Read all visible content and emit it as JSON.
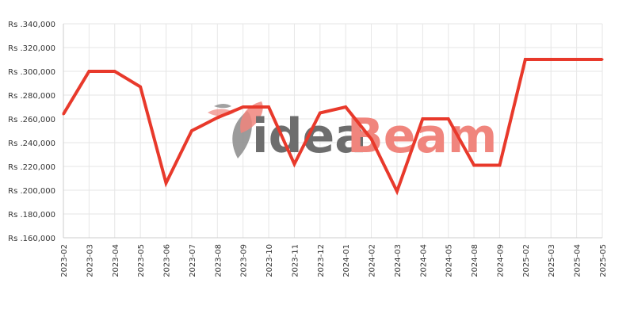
{
  "watermark": {
    "part1": "idea",
    "part2": "Beam"
  },
  "colors": {
    "line": "#e8392b",
    "grid": "#e6e6e6",
    "axis": "#cccccc",
    "text": "#333333"
  },
  "chart_data": {
    "type": "line",
    "title": "",
    "xlabel": "",
    "ylabel": "",
    "grid": true,
    "legend": "none",
    "ylim": [
      160000,
      340000
    ],
    "yticks": [
      160000,
      180000,
      200000,
      220000,
      240000,
      260000,
      280000,
      300000,
      320000,
      340000
    ],
    "ytick_labels": [
      "Rs .160,000",
      "Rs .180,000",
      "Rs .200,000",
      "Rs .220,000",
      "Rs .240,000",
      "Rs .260,000",
      "Rs .280,000",
      "Rs .300,000",
      "Rs .320,000",
      "Rs .340,000"
    ],
    "categories": [
      "2023-02",
      "2023-03",
      "2023-04",
      "2023-05",
      "2023-06",
      "2023-07",
      "2023-08",
      "2023-09",
      "2023-10",
      "2023-11",
      "2023-12",
      "2024-01",
      "2024-02",
      "2024-03",
      "2024-04",
      "2024-05",
      "2024-08",
      "2024-09",
      "2025-02",
      "2025-03",
      "2025-04",
      "2025-05"
    ],
    "series": [
      {
        "values": [
          264000,
          300000,
          300000,
          287000,
          206000,
          250000,
          261000,
          270000,
          270000,
          222000,
          265000,
          270000,
          243000,
          199000,
          260000,
          260000,
          221000,
          221000,
          310000,
          310000,
          310000,
          310000
        ]
      }
    ]
  }
}
